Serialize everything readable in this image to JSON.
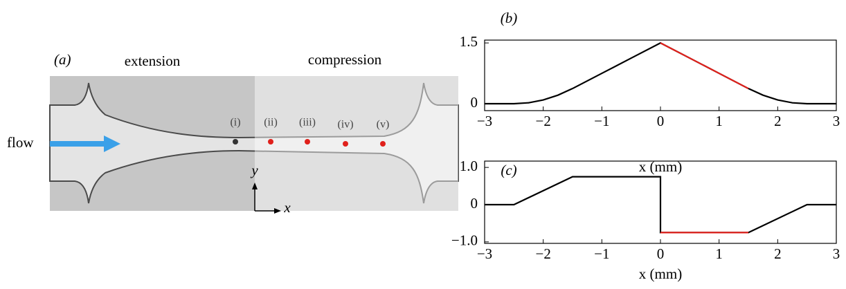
{
  "panel_a": {
    "label": "(a)",
    "left_label": "extension",
    "right_label": "compression",
    "inlet_label": "flow",
    "points": [
      {
        "label": "(i)",
        "color": "#333333"
      },
      {
        "label": "(ii)",
        "color": "#e0201b"
      },
      {
        "label": "(iii)",
        "color": "#e0201b"
      },
      {
        "label": "(iv)",
        "color": "#e0201b"
      },
      {
        "label": "(v)",
        "color": "#e0201b"
      }
    ],
    "axis_x": "x",
    "axis_y": "y"
  },
  "chart_data": [
    {
      "type": "line",
      "label": "(b)",
      "xlabel": "x (mm)",
      "x": [
        -3,
        -2.5,
        -2.25,
        -2,
        -1.75,
        -1.5,
        -1,
        -0.5,
        0,
        0.5,
        1,
        1.5,
        1.75,
        2,
        2.25,
        2.5,
        3
      ],
      "series": [
        {
          "color": "#000000",
          "values": [
            0,
            0,
            0.0234,
            0.0938,
            0.2109,
            0.375,
            0.75,
            1.125,
            1.5,
            1.125,
            0.75,
            0.375,
            0.2109,
            0.0938,
            0.0234,
            0,
            0
          ]
        },
        {
          "color": "#e0201b",
          "values": [
            null,
            null,
            null,
            null,
            null,
            null,
            null,
            null,
            1.5,
            1.125,
            0.75,
            0.375,
            null,
            null,
            null,
            null,
            null
          ]
        }
      ],
      "xlim": [
        -3,
        3
      ],
      "ylim": [
        -0.17,
        1.57
      ],
      "xticks": [
        {
          "value": -3,
          "label": "−3"
        },
        {
          "value": -2,
          "label": "−2"
        },
        {
          "value": -1,
          "label": "−1"
        },
        0,
        1,
        2,
        3
      ],
      "yticks": [
        0,
        1.5
      ]
    },
    {
      "type": "line",
      "label": "(c)",
      "xlabel": "x (mm)",
      "x": [
        -3,
        -2.5,
        -1.5,
        0,
        0,
        1.5,
        2.5,
        3
      ],
      "series": [
        {
          "color": "#000000",
          "values": [
            0,
            0,
            0.75,
            0.75,
            -0.75,
            -0.75,
            0,
            0
          ]
        },
        {
          "color": "#e0201b",
          "values": [
            null,
            null,
            null,
            null,
            -0.75,
            -0.75,
            null,
            null
          ]
        }
      ],
      "xlim": [
        -3,
        3
      ],
      "ylim": [
        -1.04,
        1.17
      ],
      "xticks": [
        {
          "value": -3,
          "label": "−3"
        },
        {
          "value": -2,
          "label": "−2"
        },
        {
          "value": -1,
          "label": "−1"
        },
        0,
        1,
        2,
        3
      ],
      "yticks": [
        {
          "value": -1,
          "label": "−1.0"
        },
        0,
        {
          "value": 1,
          "label": "1.0"
        }
      ]
    }
  ]
}
